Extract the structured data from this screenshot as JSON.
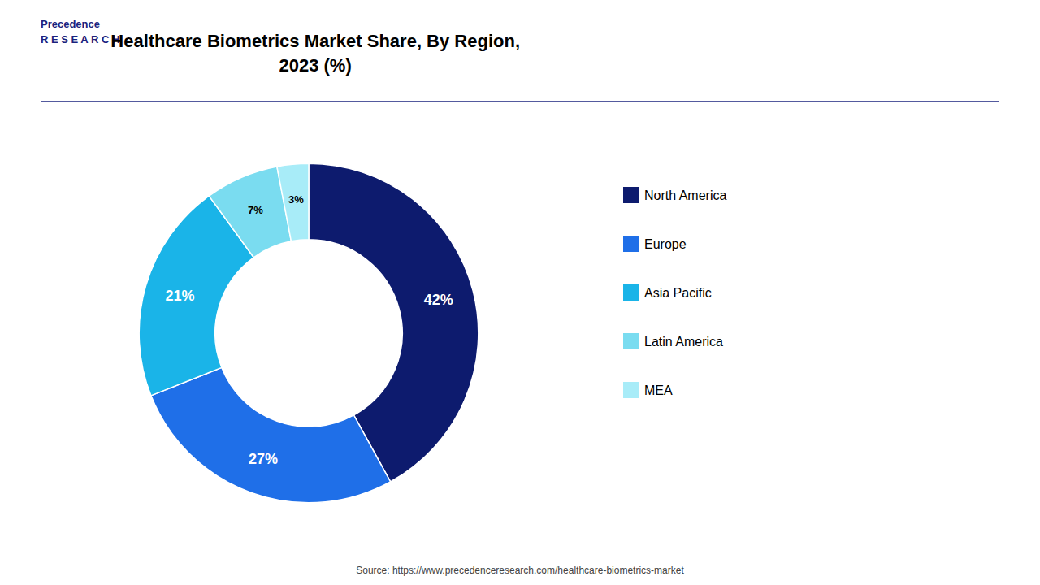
{
  "chart_data": {
    "type": "donut",
    "title": "Healthcare Biometrics Market Share, By Region,\n2023 (%)",
    "categories": [
      "North America",
      "Europe",
      "Asia Pacific",
      "Latin America",
      "MEA"
    ],
    "values": [
      42,
      27,
      21,
      7,
      3
    ],
    "value_labels": [
      "42%",
      "27%",
      "21%",
      "7%",
      "3%"
    ],
    "colors": [
      "#0d1b6e",
      "#1f6fe8",
      "#1ab4e8",
      "#7adcf0",
      "#a8ecf8"
    ],
    "data_labels": true,
    "legend": "right",
    "annotations": [
      "Source: https://www.precedenceresearch.com/healthcare-biometrics-market",
      "Precedence\nR E S E A R C H"
    ]
  }
}
